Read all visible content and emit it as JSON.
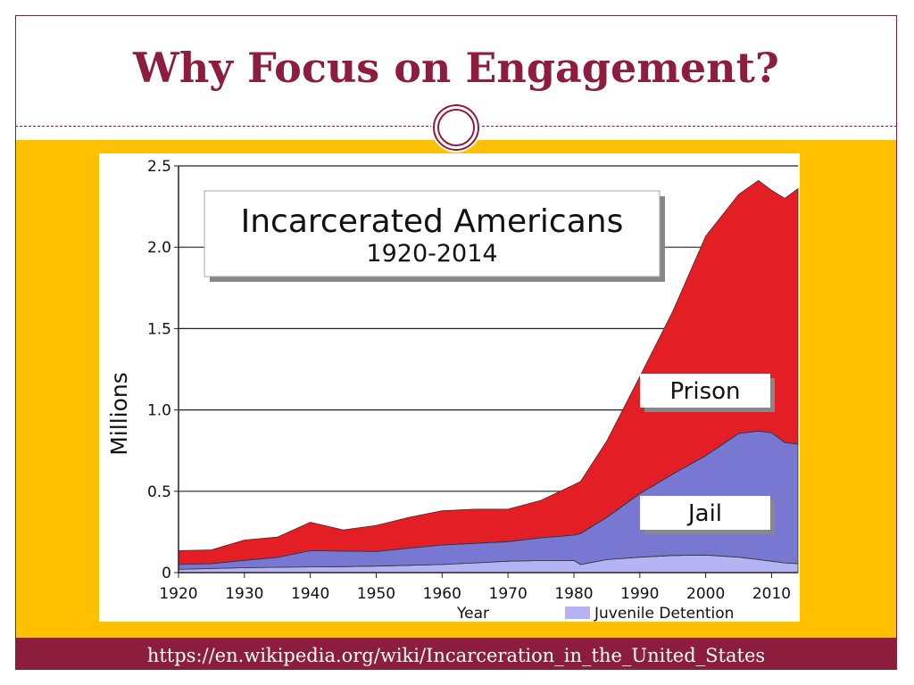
{
  "slide": {
    "title": "Why Focus on Engagement?",
    "source_url": "https://en.wikipedia.org/wiki/Incarceration_in_the_United_States",
    "colors": {
      "accent": "#8c1d3c",
      "band": "#ffc000"
    }
  },
  "chart_data": {
    "type": "area",
    "stacked": true,
    "title": "Incarcerated Americans",
    "subtitle": "1920-2014",
    "xlabel": "Year",
    "ylabel": "Millions",
    "xlim": [
      1920,
      2014
    ],
    "ylim": [
      0,
      2.5
    ],
    "x_ticks": [
      1920,
      1930,
      1940,
      1950,
      1960,
      1970,
      1980,
      1990,
      2000,
      2010
    ],
    "y_ticks": [
      0,
      0.5,
      1.0,
      1.5,
      2.0,
      2.5
    ],
    "y_tick_labels": [
      "0",
      "0.5",
      "1.0",
      "1.5",
      "2.0",
      "2.5"
    ],
    "grid": true,
    "x": [
      1920,
      1925,
      1930,
      1935,
      1940,
      1945,
      1950,
      1955,
      1960,
      1965,
      1970,
      1975,
      1980,
      1981,
      1985,
      1990,
      1995,
      2000,
      2005,
      2008,
      2010,
      2012,
      2014
    ],
    "series": [
      {
        "name": "Juvenile Detention",
        "color": "#b4b4f5",
        "values": [
          0.02,
          0.025,
          0.03,
          0.033,
          0.035,
          0.037,
          0.04,
          0.045,
          0.05,
          0.06,
          0.07,
          0.074,
          0.075,
          0.05,
          0.08,
          0.095,
          0.105,
          0.108,
          0.095,
          0.08,
          0.07,
          0.06,
          0.055
        ]
      },
      {
        "name": "Jail",
        "color": "#7878d2",
        "values": [
          0.03,
          0.03,
          0.045,
          0.06,
          0.1,
          0.095,
          0.09,
          0.105,
          0.12,
          0.12,
          0.12,
          0.14,
          0.155,
          0.19,
          0.26,
          0.39,
          0.5,
          0.61,
          0.76,
          0.79,
          0.79,
          0.74,
          0.735
        ]
      },
      {
        "name": "Prison",
        "color": "#e31e24",
        "values": [
          0.085,
          0.085,
          0.125,
          0.125,
          0.175,
          0.13,
          0.16,
          0.19,
          0.21,
          0.21,
          0.2,
          0.23,
          0.31,
          0.32,
          0.47,
          0.72,
          1.0,
          1.35,
          1.47,
          1.54,
          1.49,
          1.5,
          1.57
        ]
      }
    ],
    "area_labels": [
      "Prison",
      "Jail"
    ],
    "legend": {
      "entries": [
        "Juvenile Detention"
      ],
      "position": "bottom-right"
    }
  }
}
